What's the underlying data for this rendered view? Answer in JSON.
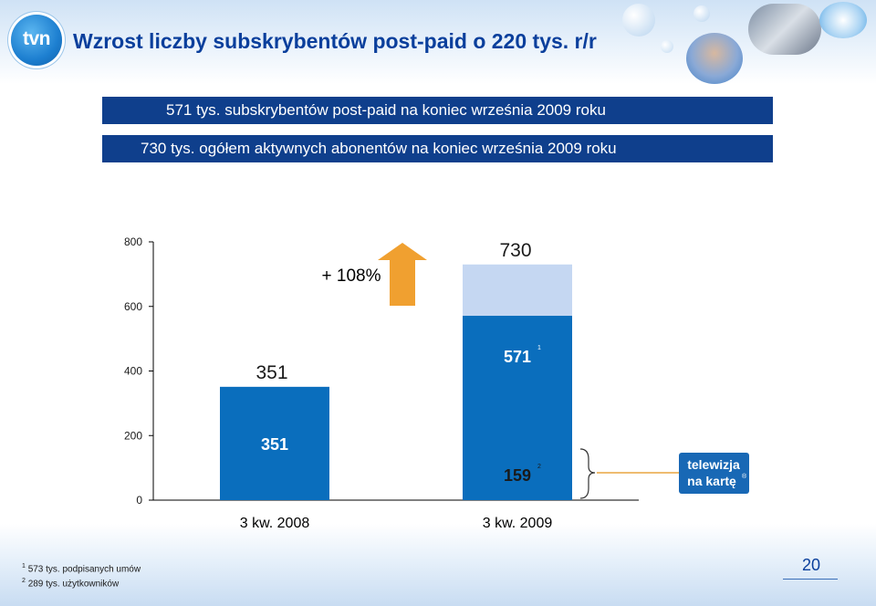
{
  "slide": {
    "title": "Wzrost liczby subskrybentów post-paid o 220 tys. r/r",
    "logo_text": "tvn",
    "banners": [
      "571 tys. subskrybentów post-paid na koniec września 2009 roku",
      "730 tys.  ogółem aktywnych abonentów na koniec września 2009 roku"
    ],
    "footnotes": [
      {
        "marker": "1",
        "text": "573 tys. podpisanych umów"
      },
      {
        "marker": "2",
        "text": "289 tys. użytkowników"
      }
    ],
    "page_number": "20",
    "colors": {
      "title": "#0a3f9c",
      "banner_bg": "#0f3f8c",
      "bar_dark": "#0a6ebd",
      "bar_light": "#c5d7f2",
      "arrow": "#f0a030"
    }
  },
  "chart_data": {
    "type": "bar",
    "stacked": true,
    "categories": [
      "3 kw. 2008",
      "3 kw. 2009"
    ],
    "series": [
      {
        "name": "",
        "values": [
          351,
          571
        ],
        "color": "#0a6ebd"
      },
      {
        "name": "",
        "values": [
          0,
          159
        ],
        "color": "#c5d7f2"
      }
    ],
    "totals": [
      351,
      730
    ],
    "total_labels": [
      "351",
      "730"
    ],
    "segment_labels": [
      {
        "category": 0,
        "series": 0,
        "text": "351"
      },
      {
        "category": 1,
        "series": 0,
        "text": "571",
        "footnote": "1"
      },
      {
        "category": 1,
        "series": 1,
        "text": "159",
        "footnote": "2"
      }
    ],
    "growth_annotation": "+ 108%",
    "ylim": [
      0,
      800
    ],
    "yticks": [
      0,
      200,
      400,
      600,
      800
    ],
    "ytick_labels": [
      "0",
      "200",
      "400",
      "600",
      "800"
    ],
    "bracket_label": {
      "line1": "telewizja",
      "line2": "na kartę",
      "mark": "®"
    },
    "grid": false,
    "xlabel": "",
    "ylabel": ""
  }
}
